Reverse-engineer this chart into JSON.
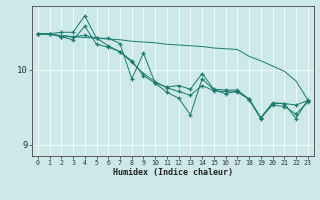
{
  "title": "",
  "xlabel": "Humidex (Indice chaleur)",
  "bg_color": "#cce8e8",
  "line_color": "#1a7a6e",
  "grid_color": "#ffffff",
  "xmin": -0.5,
  "xmax": 23.5,
  "ymin": 8.85,
  "ymax": 10.85,
  "yticks": [
    9,
    10
  ],
  "xticks": [
    0,
    1,
    2,
    3,
    4,
    5,
    6,
    7,
    8,
    9,
    10,
    11,
    12,
    13,
    14,
    15,
    16,
    17,
    18,
    19,
    20,
    21,
    22,
    23
  ],
  "line1_x": [
    0,
    1,
    2,
    3,
    4,
    5,
    6,
    7,
    8,
    9,
    10,
    11,
    12,
    13,
    14,
    15,
    16,
    17,
    18,
    19,
    20,
    21,
    22,
    23
  ],
  "line1_y": [
    10.48,
    10.48,
    10.5,
    10.5,
    10.72,
    10.42,
    10.42,
    10.35,
    9.88,
    10.22,
    9.82,
    9.7,
    9.62,
    9.4,
    9.88,
    9.73,
    9.68,
    9.72,
    9.6,
    9.35,
    9.55,
    9.55,
    9.35,
    9.6
  ],
  "line2_x": [
    0,
    1,
    2,
    3,
    4,
    5,
    6,
    7,
    8,
    9,
    10,
    11,
    12,
    13,
    14,
    15,
    16,
    17,
    18,
    19,
    20,
    21,
    22,
    23
  ],
  "line2_y": [
    10.48,
    10.48,
    10.44,
    10.4,
    10.58,
    10.34,
    10.3,
    10.24,
    10.12,
    9.92,
    9.82,
    9.77,
    9.79,
    9.74,
    9.95,
    9.74,
    9.73,
    9.73,
    9.61,
    9.36,
    9.56,
    9.55,
    9.53,
    9.59
  ],
  "line3_x": [
    0,
    1,
    2,
    3,
    4,
    5,
    6,
    7,
    8,
    9,
    10,
    11,
    12,
    13,
    14,
    15,
    16,
    17,
    18,
    19,
    20,
    21,
    22,
    23
  ],
  "line3_y": [
    10.48,
    10.47,
    10.46,
    10.44,
    10.43,
    10.42,
    10.41,
    10.4,
    10.38,
    10.37,
    10.36,
    10.34,
    10.33,
    10.32,
    10.31,
    10.29,
    10.28,
    10.27,
    10.18,
    10.12,
    10.05,
    9.98,
    9.85,
    9.6
  ],
  "line4_x": [
    0,
    1,
    2,
    3,
    4,
    5,
    6,
    7,
    8,
    9,
    10,
    11,
    12,
    13,
    14,
    15,
    16,
    17,
    18,
    19,
    20,
    21,
    22,
    23
  ],
  "line4_y": [
    10.48,
    10.48,
    10.44,
    10.44,
    10.46,
    10.42,
    10.32,
    10.24,
    10.1,
    9.95,
    9.84,
    9.76,
    9.71,
    9.66,
    9.79,
    9.72,
    9.71,
    9.7,
    9.61,
    9.36,
    9.53,
    9.51,
    9.41,
    9.57
  ]
}
